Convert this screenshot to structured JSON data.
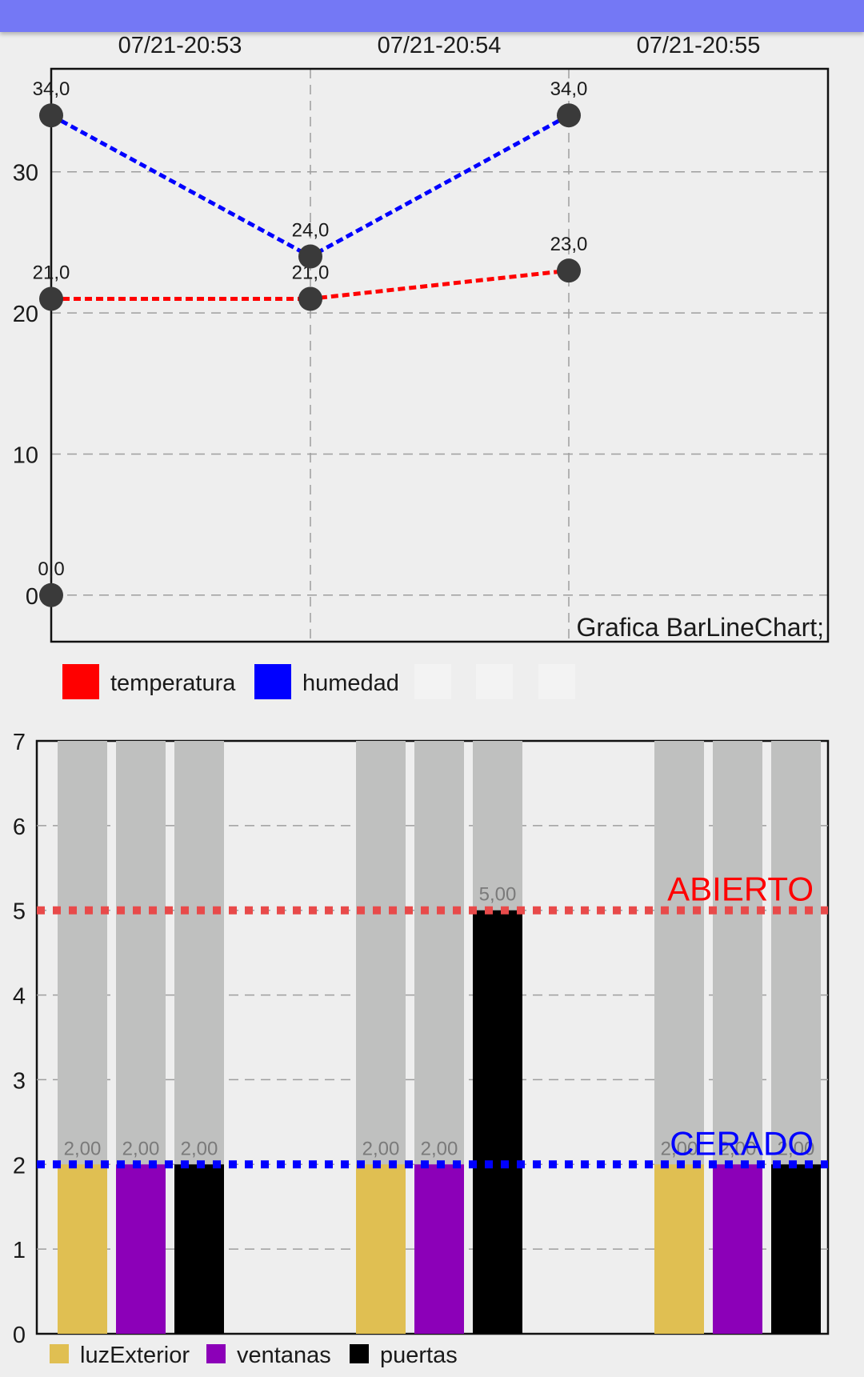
{
  "app_bar": {
    "color": "#7478f5"
  },
  "chart_data": [
    {
      "type": "line",
      "description": "Grafica BarLineChart;",
      "x_top_labels": [
        "07/21-20:53",
        "07/21-20:54",
        "07/21-20:55"
      ],
      "y_ticks": [
        "0",
        "10",
        "20",
        "30"
      ],
      "ylim": [
        -3.3,
        37.3
      ],
      "grid": true,
      "series": [
        {
          "name": "temperatura",
          "color": "#ff0000",
          "x": [
            0,
            1,
            2
          ],
          "values": [
            21.0,
            21.0,
            23.0
          ],
          "labels": [
            "21,0",
            "21,0",
            "23,0"
          ]
        },
        {
          "name": "humedad",
          "color": "#0000ff",
          "x": [
            0,
            1,
            2
          ],
          "values": [
            34.0,
            24.0,
            34.0
          ],
          "labels": [
            "34,0",
            "24,0",
            "34,0"
          ]
        }
      ],
      "extra_point": {
        "x": 0,
        "value": 0,
        "label": "0,0"
      },
      "legend": {
        "placement": "bottom-left",
        "items": [
          {
            "label": "temperatura",
            "color": "#ff0000"
          },
          {
            "label": "humedad",
            "color": "#0000ff"
          }
        ]
      }
    },
    {
      "type": "bar",
      "y_ticks": [
        "0",
        "1",
        "2",
        "3",
        "4",
        "5",
        "6",
        "7"
      ],
      "ylim": [
        0,
        7
      ],
      "grid": true,
      "groups": 3,
      "background_bar_color": "#bfc0bf",
      "series": [
        {
          "name": "luzExterior",
          "color": "#e0bf52",
          "values": [
            2,
            2,
            2
          ],
          "labels": [
            "2,00",
            "2,00",
            "2,00"
          ]
        },
        {
          "name": "ventanas",
          "color": "#8c00b8",
          "values": [
            2,
            2,
            2
          ],
          "labels": [
            "2,00",
            "2,00",
            "2,00"
          ]
        },
        {
          "name": "puertas",
          "color": "#000000",
          "values": [
            2,
            5,
            2
          ],
          "labels": [
            "2,00",
            "5,00",
            "2,00"
          ]
        }
      ],
      "limit_lines": [
        {
          "label": "ABIERTO",
          "value": 5,
          "color": "#e84a4a",
          "label_color": "#ff0000"
        },
        {
          "label": "CERADO",
          "value": 2,
          "color": "#0000ff",
          "label_color": "#0000ff"
        }
      ],
      "legend": {
        "placement": "bottom-left",
        "items": [
          {
            "label": "luzExterior",
            "color": "#e0bf52"
          },
          {
            "label": "ventanas",
            "color": "#8c00b8"
          },
          {
            "label": "puertas",
            "color": "#000000"
          }
        ]
      }
    }
  ]
}
